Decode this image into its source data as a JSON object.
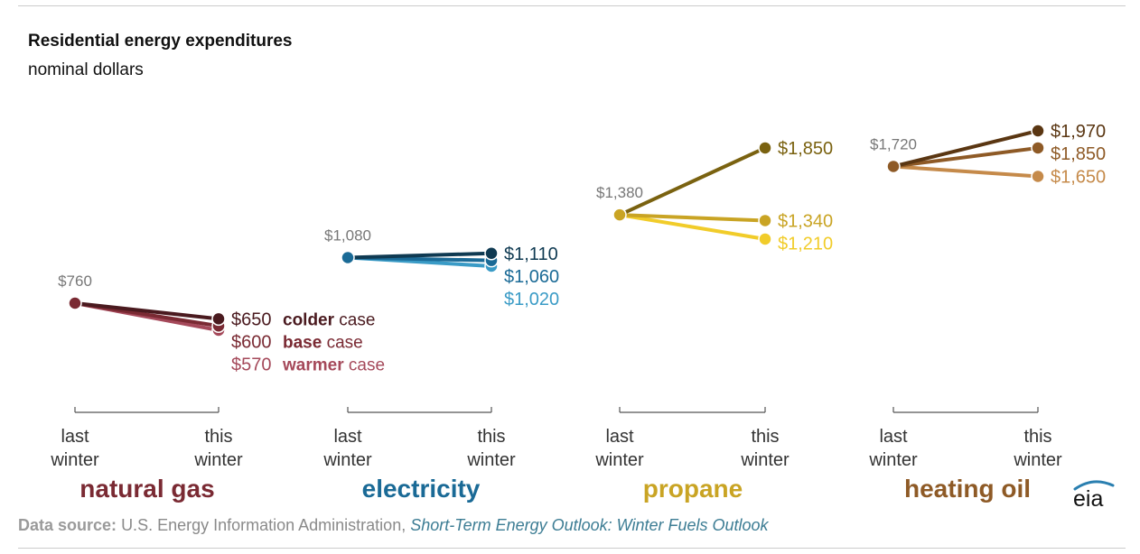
{
  "title": "Residential energy expenditures",
  "subtitle": "nominal dollars",
  "chart_data": {
    "type": "slope",
    "title": "Residential energy expenditures",
    "subtitle": "nominal dollars",
    "x_labels": [
      "last winter",
      "this winter"
    ],
    "ylim": [
      500,
      2050
    ],
    "cases": [
      "colder case",
      "base case",
      "warmer case"
    ],
    "case_label_parts": [
      {
        "bold": "colder",
        "rest": " case"
      },
      {
        "bold": "base",
        "rest": " case"
      },
      {
        "bold": "warmer",
        "rest": " case"
      }
    ],
    "fuels": [
      {
        "name": "natural gas",
        "last_winter": 760,
        "last_label": "$760",
        "this_winter": [
          650,
          600,
          570
        ],
        "this_labels": [
          "$650",
          "$600",
          "$570"
        ],
        "colors": [
          "#4a1a1f",
          "#7a2a33",
          "#a5495a"
        ],
        "main_color": "#7a2a33"
      },
      {
        "name": "electricity",
        "last_winter": 1080,
        "last_label": "$1,080",
        "this_winter": [
          1110,
          1060,
          1020
        ],
        "this_labels": [
          "$1,110",
          "$1,060",
          "$1,020"
        ],
        "colors": [
          "#0f3a52",
          "#1a6a96",
          "#3a9bc6"
        ],
        "main_color": "#1a6a96"
      },
      {
        "name": "propane",
        "last_winter": 1380,
        "last_label": "$1,380",
        "this_winter": [
          1850,
          1340,
          1210
        ],
        "this_labels": [
          "$1,850",
          "$1,340",
          "$1,210"
        ],
        "colors": [
          "#7a6210",
          "#c9a424",
          "#f1cc2a"
        ],
        "main_color": "#c9a424"
      },
      {
        "name": "heating oil",
        "last_winter": 1720,
        "last_label": "$1,720",
        "this_winter": [
          1970,
          1850,
          1650
        ],
        "this_labels": [
          "$1,970",
          "$1,850",
          "$1,650"
        ],
        "colors": [
          "#5a3612",
          "#8e5a26",
          "#c58a4a"
        ],
        "main_color": "#8e5a26"
      }
    ]
  },
  "source": {
    "label": "Data source:",
    "org": "U.S. Energy Information Administration,",
    "publication": "Short-Term Energy Outlook: Winter Fuels Outlook"
  },
  "logo_text": "eia"
}
